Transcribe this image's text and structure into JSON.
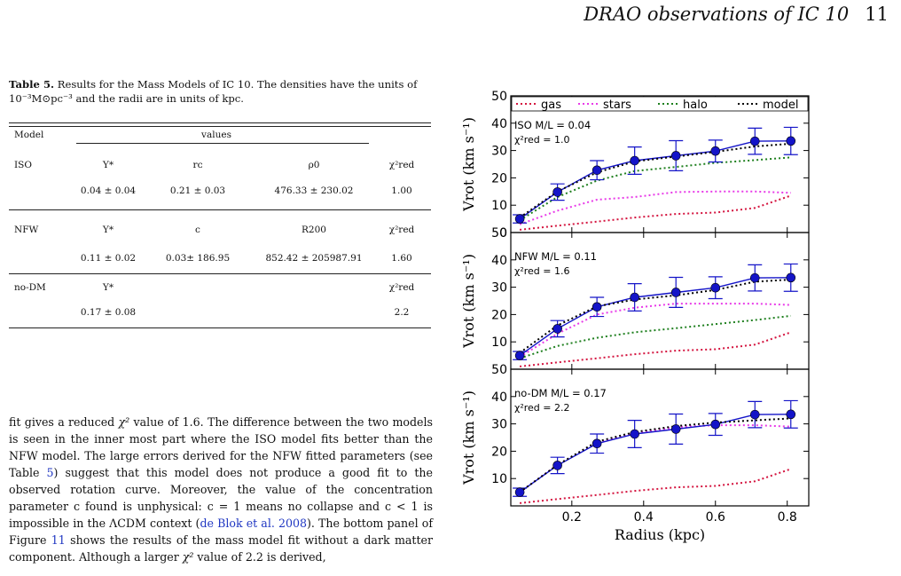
{
  "header": {
    "running_title": "DRAO observations of IC 10",
    "page_number": "11"
  },
  "table": {
    "caption_label": "Table 5.",
    "caption_text": "Results for the Mass Models of IC 10. The densities have the units of 10⁻³M⊙pc⁻³ and the radii are in units of kpc.",
    "col_model": "Model",
    "col_values": "values",
    "rows": [
      {
        "model": "ISO",
        "params": [
          "Υ*",
          "rᴄ",
          "ρ0",
          "χ²red"
        ],
        "values": [
          "0.04 ± 0.04",
          "0.21 ± 0.03",
          "476.33 ± 230.02",
          "1.00"
        ]
      },
      {
        "model": "NFW",
        "params": [
          "Υ*",
          "c",
          "R200",
          "χ²red"
        ],
        "values": [
          "0.11 ± 0.02",
          "0.03± 186.95",
          "852.42 ± 205987.91",
          "1.60"
        ]
      },
      {
        "model": "no-DM",
        "params": [
          "Υ*",
          "",
          "",
          "χ²red"
        ],
        "values": [
          "0.17 ± 0.08",
          "",
          "",
          "2.2"
        ]
      }
    ]
  },
  "body_text": {
    "p1_a": "fit gives a reduced ",
    "p1_chi": "χ²",
    "p1_b": " value of 1.6. The difference between the two models is seen in the inner most part where the ISO model fits better than the NFW model. The large errors derived for the NFW fitted parameters (see Table ",
    "p1_ref_table": "5",
    "p1_c": ") suggest that this model does not produce a good fit to the observed rotation curve. Moreover, the value of the concentration parameter c found is unphysical: c = 1 means no collapse and c < 1 is impossible in the ΛCDM context (",
    "p1_ref_cite": "de Blok et al. 2008",
    "p1_d": "). The bottom panel of Figure ",
    "p1_ref_fig": "11",
    "p1_e": " shows the results of the mass model fit without a dark matter component. Although a larger ",
    "p1_chi2": "χ²",
    "p1_f": " value of 2.2 is derived,"
  },
  "chart_data": {
    "type": "line",
    "xlabel": "Radius (kpc)",
    "ylabel": "Vrot (km s⁻¹)",
    "xlim": [
      0.03,
      0.86
    ],
    "ylim": [
      0,
      50
    ],
    "xticks": [
      "0.2",
      "0.4",
      "0.6",
      "0.8"
    ],
    "yticks": [
      "0",
      "10",
      "20",
      "30",
      "40",
      "50"
    ],
    "legend": [
      "gas",
      "stars",
      "halo",
      "model"
    ],
    "legend_placement": "top",
    "colors": {
      "gas": "#d4143f",
      "stars": "#e83be8",
      "halo": "#1e7f1e",
      "model": "#000000",
      "observed": "#1414c8"
    },
    "observed": {
      "x": [
        0.055,
        0.16,
        0.27,
        0.375,
        0.49,
        0.6,
        0.71,
        0.81
      ],
      "y": [
        5,
        14.8,
        22.8,
        26.3,
        28.1,
        29.8,
        33.4,
        33.5
      ],
      "err": [
        1.5,
        3,
        3.5,
        5,
        5.5,
        4,
        4.8,
        5
      ]
    },
    "gas": {
      "x": [
        0.055,
        0.16,
        0.27,
        0.375,
        0.49,
        0.6,
        0.71,
        0.81
      ],
      "y": [
        1,
        2.5,
        4,
        5.5,
        6.8,
        7.3,
        9,
        13.5
      ]
    },
    "panels": [
      {
        "label": "ISO M/L = 0.04",
        "chi": "χ²red = 1.0",
        "show_legend": true,
        "stars": [
          3,
          8,
          12,
          13,
          14.8,
          15,
          15,
          14.5
        ],
        "halo": [
          4.5,
          13,
          19,
          22.5,
          24,
          25.5,
          26.5,
          27.5
        ],
        "model": [
          5.5,
          15,
          22,
          26,
          27.8,
          29.5,
          31.5,
          32.5
        ]
      },
      {
        "label": "NFW M/L = 0.11",
        "chi": "χ²red = 1.6",
        "show_legend": false,
        "stars": [
          4.5,
          13,
          20,
          22.5,
          24,
          24,
          24,
          23.5
        ],
        "halo": [
          4,
          8.5,
          11.5,
          13.5,
          15,
          16.5,
          18,
          19.5
        ],
        "model": [
          6,
          16,
          23,
          25.5,
          27,
          29,
          32,
          32.8
        ]
      },
      {
        "label": "no-DM M/L = 0.17",
        "chi": "χ²red = 2.2",
        "show_legend": false,
        "stars": [
          5,
          15,
          23,
          26.5,
          28.8,
          29.5,
          29.5,
          29
        ],
        "halo": null,
        "model": [
          5,
          15,
          23.5,
          27,
          29.2,
          30.5,
          31.3,
          32
        ]
      }
    ]
  }
}
